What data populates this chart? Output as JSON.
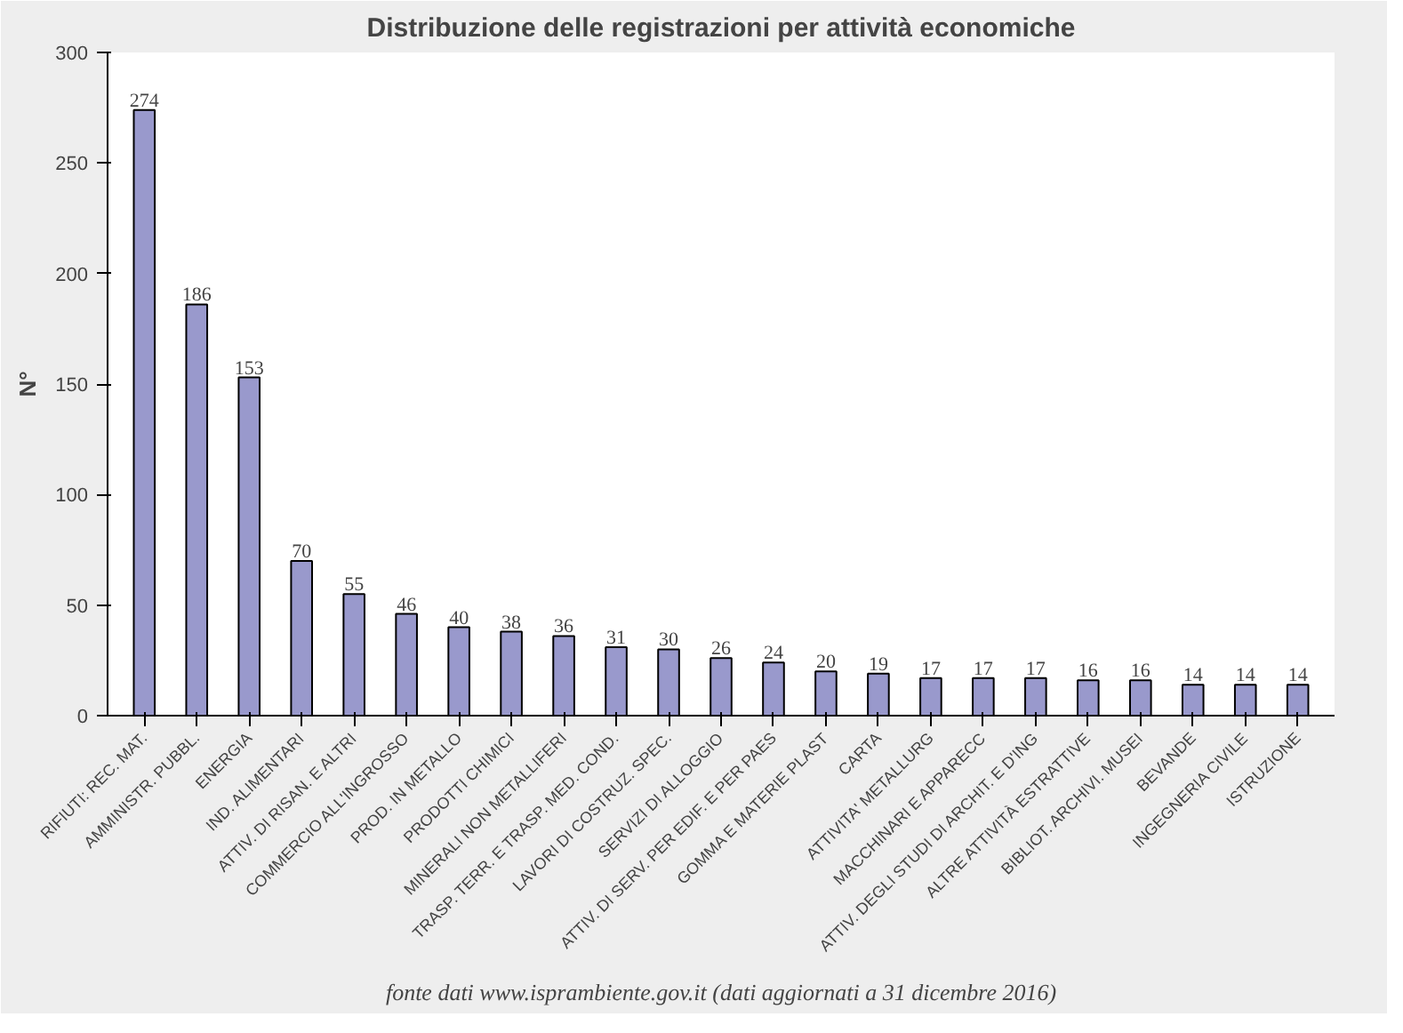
{
  "chart_data": {
    "type": "bar",
    "title": "Distribuzione delle registrazioni per attività economiche",
    "ylabel": "N°",
    "categories": [
      "RIFIUTI: REC. MAT.",
      "AMMINISTR. PUBBL.",
      "ENERGIA",
      "IND. ALIMENTARI",
      "ATTIV. DI RISAN. E ALTRI",
      "COMMERCIO ALL'INGROSSO",
      "PROD. IN METALLO",
      "PRODOTTI CHIMICI",
      "MINERALI NON METALLIFERI",
      "TRASP. TERR. E TRASP. MED. COND.",
      "LAVORI DI COSTRUZ. SPEC.",
      "SERVIZI DI ALLOGGIO",
      "ATTIV. DI SERV. PER EDIF. E PER PAES",
      "GOMMA E MATERIE PLAST",
      "CARTA",
      "ATTIVITA' METALLURG",
      "MACCHINARI E APPARECC",
      "ATTIV. DEGLI STUDI DI ARCHIT. E D'ING",
      "ALTRE ATTIVITÀ ESTRATTIVE",
      "BIBLIOT. ARCHIVI. MUSEI",
      "BEVANDE",
      "INGEGNERIA CIVILE",
      "ISTRUZIONE"
    ],
    "values": [
      274,
      186,
      153,
      70,
      55,
      46,
      40,
      38,
      36,
      31,
      30,
      26,
      24,
      20,
      19,
      17,
      17,
      17,
      16,
      16,
      14,
      14,
      14
    ],
    "color": "#9999cc",
    "ylim": [
      0,
      300
    ],
    "yticks": [
      0,
      50,
      100,
      150,
      200,
      250,
      300
    ],
    "grid": false,
    "data_labels": true,
    "annotations": [
      "fonte dati www.isprambiente.gov.it (dati aggiornati a 31 dicembre 2016)"
    ]
  }
}
